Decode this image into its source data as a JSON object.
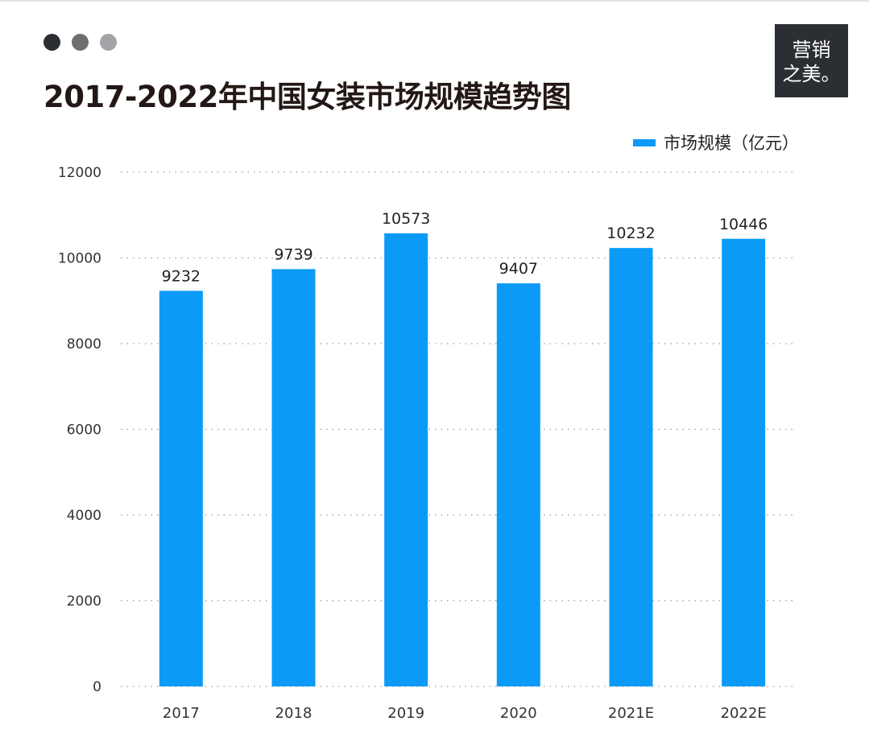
{
  "window_dots": [
    "#2b2e33",
    "#6d6e72",
    "#a3a4a8"
  ],
  "logo_text": [
    "营销",
    "之美。"
  ],
  "chart_data": {
    "type": "bar",
    "title": "2017-2022年中国女装市场规模趋势图",
    "categories": [
      "2017",
      "2018",
      "2019",
      "2020",
      "2021E",
      "2022E"
    ],
    "series": [
      {
        "name": "市场规模（亿元）",
        "values": [
          9232,
          9739,
          10573,
          9407,
          10232,
          10446
        ],
        "color": "#0b9bf7"
      }
    ],
    "xlabel": "",
    "ylabel": "",
    "ylim": [
      0,
      12000
    ],
    "yticks": [
      "0",
      "2000",
      "4000",
      "6000",
      "8000",
      "10000",
      "12000"
    ],
    "grid": true,
    "grid_style": "dotted",
    "legend_position": "top-right",
    "data_labels": true
  }
}
